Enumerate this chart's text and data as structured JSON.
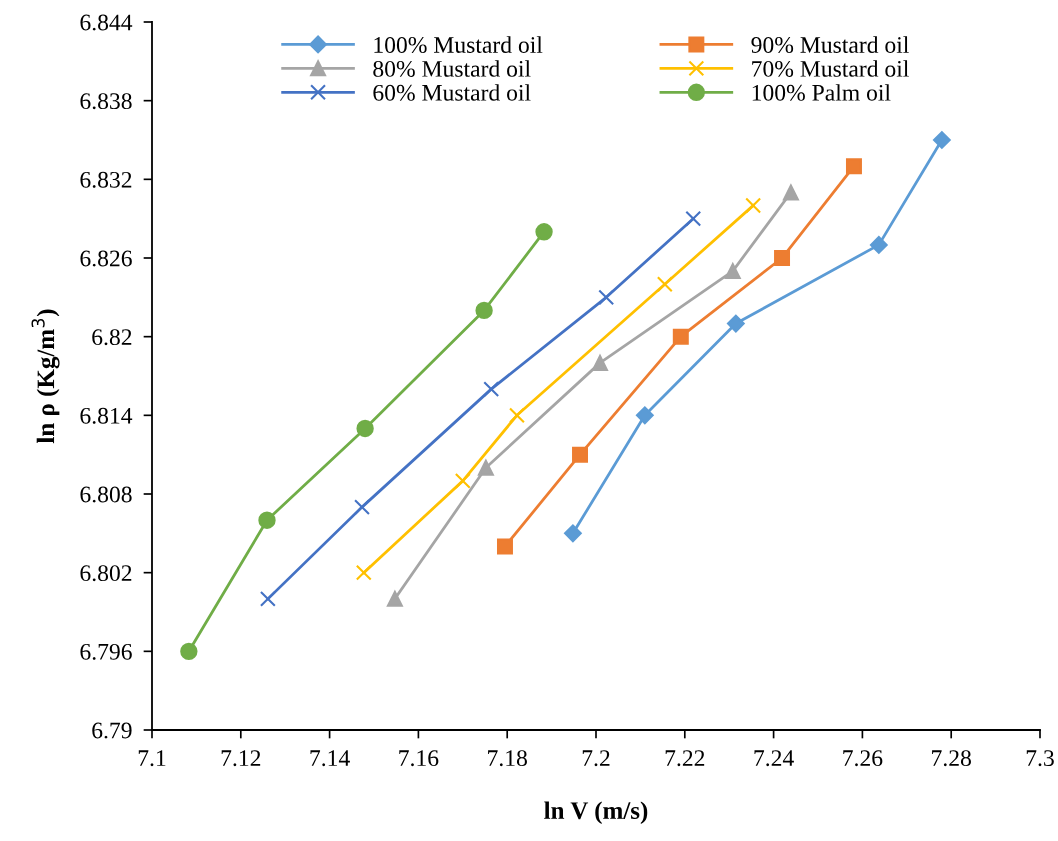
{
  "chart_data": {
    "type": "line",
    "xlabel": "ln V (m/s)",
    "ylabel": "ln ρ (Kg/m$^{3}$)",
    "xlim": [
      7.1,
      7.3
    ],
    "xticks": [
      7.1,
      7.12,
      7.14,
      7.16,
      7.18,
      7.2,
      7.22,
      7.24,
      7.26,
      7.28,
      7.3
    ],
    "ylim": [
      6.79,
      6.844
    ],
    "yticks": [
      6.79,
      6.796,
      6.802,
      6.808,
      6.814,
      {
        "value": 6.82,
        "label": "6.82"
      },
      6.826,
      6.832,
      6.838,
      6.844
    ],
    "grid": false,
    "legend": "top",
    "series": [
      {
        "name": "100% Mustard oil",
        "color": "#5b9bd5",
        "marker": "diamond",
        "x": [
          7.1948,
          7.211,
          7.2315,
          7.2637,
          7.2779
        ],
        "values": [
          6.805,
          6.814,
          6.821,
          6.827,
          6.835
        ]
      },
      {
        "name": "90% Mustard oil",
        "color": "#ed7d31",
        "marker": "square",
        "x": [
          7.1795,
          7.1964,
          7.2191,
          7.2419,
          7.2581
        ],
        "values": [
          6.804,
          6.811,
          6.82,
          6.826,
          6.833
        ]
      },
      {
        "name": "80% Mustard oil",
        "color": "#a5a5a5",
        "marker": "triangle",
        "x": [
          7.1547,
          7.1752,
          7.2009,
          7.2308,
          7.2439
        ],
        "values": [
          6.8,
          6.81,
          6.818,
          6.825,
          6.831
        ]
      },
      {
        "name": "70% Mustard oil",
        "color": "#ffc000",
        "marker": "cross",
        "x": [
          7.1477,
          7.17,
          7.1822,
          7.2155,
          7.2354
        ],
        "values": [
          6.802,
          6.809,
          6.814,
          6.824,
          6.83
        ]
      },
      {
        "name": "60% Mustard oil",
        "color": "#4472c4",
        "marker": "cross",
        "x": [
          7.1261,
          7.1473,
          7.1764,
          7.2023,
          7.2219
        ],
        "values": [
          6.8,
          6.807,
          6.816,
          6.823,
          6.829
        ]
      },
      {
        "name": "100% Palm oil",
        "color": "#70ad47",
        "marker": "circle",
        "x": [
          7.1083,
          7.1259,
          7.148,
          7.1748,
          7.1883
        ],
        "values": [
          6.796,
          6.806,
          6.813,
          6.822,
          6.828
        ]
      }
    ]
  }
}
